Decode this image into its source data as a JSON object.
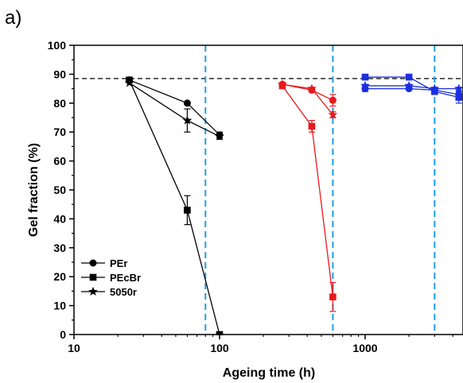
{
  "chart_data": {
    "type": "scatter",
    "panel_label": "a)",
    "title": "",
    "xlabel": "Ageing time (h)",
    "ylabel": "Gel fraction (%)",
    "x_scale": "log",
    "xlim": [
      10,
      4500
    ],
    "ylim": [
      0,
      100
    ],
    "x_ticks": [
      10,
      100,
      1000
    ],
    "x_tick_labels": [
      "10",
      "100",
      "1000"
    ],
    "y_ticks": [
      0,
      10,
      20,
      30,
      40,
      50,
      60,
      70,
      80,
      90,
      100
    ],
    "y_tick_labels": [
      "0",
      "10",
      "20",
      "30",
      "40",
      "50",
      "60",
      "70",
      "80",
      "90",
      "100"
    ],
    "grid": false,
    "legend_position": "lower-left",
    "reference_line": {
      "y": 88.5,
      "style": "dashed",
      "color": "#000000"
    },
    "vertical_lines": [
      {
        "x": 80,
        "style": "dashed",
        "color": "#1E9FE6"
      },
      {
        "x": 600,
        "style": "dashed",
        "color": "#1E9FE6"
      },
      {
        "x": 3000,
        "style": "dashed",
        "color": "#1E9FE6"
      }
    ],
    "legend": [
      {
        "label": "PEr",
        "marker": "circle"
      },
      {
        "label": "PEcBr",
        "marker": "square"
      },
      {
        "label": "5050r",
        "marker": "star"
      }
    ],
    "groups": [
      {
        "color": "#000000",
        "series": [
          {
            "marker": "circle",
            "points": [
              [
                24,
                88,
                0
              ],
              [
                60,
                80,
                0
              ],
              [
                100,
                69,
                1
              ]
            ]
          },
          {
            "marker": "square",
            "points": [
              [
                24,
                88,
                0
              ],
              [
                60,
                43,
                5
              ],
              [
                100,
                0,
                0
              ]
            ]
          },
          {
            "marker": "star",
            "points": [
              [
                24,
                87,
                0
              ],
              [
                60,
                74,
                4
              ],
              [
                100,
                68.5,
                1
              ]
            ]
          }
        ]
      },
      {
        "color": "#E8191B",
        "series": [
          {
            "marker": "circle",
            "points": [
              [
                270,
                86.5,
                0.5
              ],
              [
                430,
                84.5,
                0.5
              ],
              [
                600,
                81,
                2
              ]
            ]
          },
          {
            "marker": "square",
            "points": [
              [
                270,
                86,
                1
              ],
              [
                430,
                72,
                2
              ],
              [
                600,
                13,
                5
              ]
            ]
          },
          {
            "marker": "star",
            "points": [
              [
                270,
                86.5,
                0.5
              ],
              [
                430,
                85,
                0.5
              ],
              [
                600,
                76,
                1
              ]
            ]
          }
        ]
      },
      {
        "color": "#1B2FE0",
        "series": [
          {
            "marker": "circle",
            "points": [
              [
                1000,
                85,
                1
              ],
              [
                2000,
                85,
                0.5
              ],
              [
                3000,
                84.5,
                0.5
              ],
              [
                4400,
                83,
                1
              ]
            ]
          },
          {
            "marker": "square",
            "points": [
              [
                1000,
                89,
                0.5
              ],
              [
                2000,
                89,
                0.5
              ],
              [
                3000,
                84,
                1
              ],
              [
                4400,
                82,
                2
              ]
            ]
          },
          {
            "marker": "star",
            "points": [
              [
                1000,
                86,
                0.5
              ],
              [
                2000,
                86,
                0.5
              ],
              [
                3000,
                85,
                0.5
              ],
              [
                4400,
                85,
                0.5
              ]
            ]
          }
        ]
      }
    ]
  }
}
